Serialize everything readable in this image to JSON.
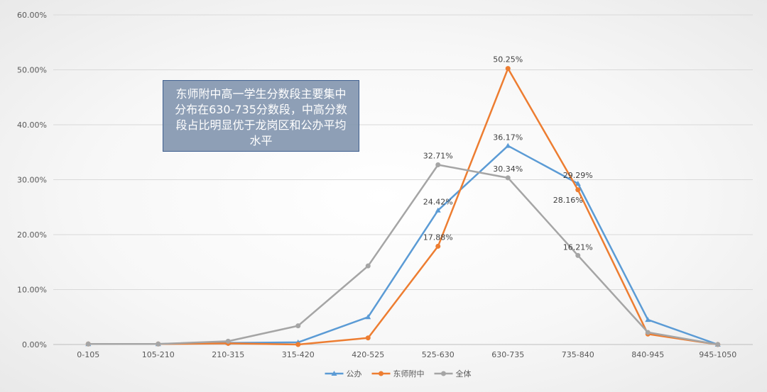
{
  "chart_data": {
    "type": "line",
    "categories": [
      "0-105",
      "105-210",
      "210-315",
      "315-420",
      "420-525",
      "525-630",
      "630-735",
      "735-840",
      "840-945",
      "945-1050"
    ],
    "series": [
      {
        "name": "公办",
        "color": "#5b9bd5",
        "marker": "triangle",
        "values": [
          0.1,
          0.1,
          0.3,
          0.4,
          5.0,
          24.42,
          36.17,
          29.29,
          4.5,
          0.0
        ],
        "labels": [
          "",
          "",
          "",
          "",
          "",
          "24.42%",
          "36.17%",
          "29.29%",
          "",
          ""
        ]
      },
      {
        "name": "东师附中",
        "color": "#ed7d31",
        "marker": "circle",
        "values": [
          0.1,
          0.1,
          0.2,
          0.0,
          1.2,
          17.88,
          50.25,
          28.16,
          1.9,
          0.0
        ],
        "labels": [
          "",
          "",
          "",
          "",
          "",
          "17.88%",
          "50.25%",
          "28.16%",
          "",
          ""
        ]
      },
      {
        "name": "全体",
        "color": "#a5a5a5",
        "marker": "circle",
        "values": [
          0.1,
          0.1,
          0.6,
          3.4,
          14.3,
          32.71,
          30.34,
          16.21,
          2.2,
          0.0
        ],
        "labels": [
          "",
          "",
          "",
          "",
          "",
          "32.71%",
          "30.34%",
          "16.21%",
          "",
          ""
        ]
      }
    ],
    "ylim": [
      0,
      60
    ],
    "yticks": [
      "0.00%",
      "10.00%",
      "20.00%",
      "30.00%",
      "40.00%",
      "50.00%",
      "60.00%"
    ],
    "ytick_values": [
      0,
      10,
      20,
      30,
      40,
      50,
      60
    ],
    "grid": true,
    "legend": "bottom"
  },
  "annotation": {
    "text": "东师附中高一学生分数段主要集中分布在630-735分数段，中高分数段占比明显优于龙岗区和公办平均水平"
  }
}
